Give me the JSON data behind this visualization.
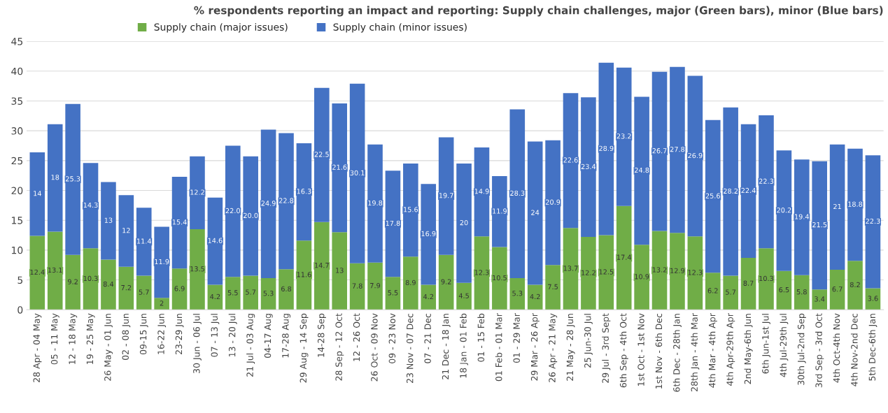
{
  "chart_data": {
    "type": "bar",
    "stacked": true,
    "title": "% respondents reporting an impact and reporting: Supply chain challenges, major (Green bars), minor (Blue bars)",
    "categories": [
      "28 Apr - 04 May",
      "05 - 11 May",
      "12 - 18 May",
      "19 - 25 May",
      "26 May - 01 Jun",
      "02 - 08 Jun",
      "09-15 Jun",
      "16-22 Jun",
      "23-29 Jun",
      "30 Jun - 06 Jul",
      "07 - 13 Jul",
      "13 - 20 Jul",
      "21 Jul - 03 Aug",
      "04-17 Aug",
      "17-28 Aug",
      "29 Aug - 14 Sep",
      "14-28 Sep",
      "28 Sep - 12 Oct",
      "12 - 26 Oct",
      "26 Oct - 09 Nov",
      "09 - 23 Nov",
      "23 Nov - 07 Dec",
      "07 - 21 Dec",
      "21 Dec - 18 Jan",
      "18 Jan - 01 Feb",
      "01 - 15 Feb",
      "01 Feb - 01 Mar",
      "01 - 29 Mar",
      "29 Mar - 26 Apr",
      "26 Apr - 21 May",
      "21 May - 28 Jun",
      "25 Jun-30 Jul",
      "29 Jul - 3rd Sept",
      "6th Sep - 4th Oct",
      "1st Oct - 1st Nov",
      "1st Nov - 6th Dec",
      "6th Dec - 28th Jan",
      "28th Jan - 4th Mar",
      "4th Mar - 4th Apr",
      "4th Apr-29th Apr",
      "2nd May-6th Jun",
      "6th Jun-1st Jul",
      "4th Jul-29th Jul",
      "30th Jul-2nd Sep",
      "3rd Sep - 3rd Oct",
      "4th Oct-4th Nov",
      "4th Nov-2nd Dec",
      "5th Dec-6th Jan"
    ],
    "series": [
      {
        "name": "Supply chain (major issues)",
        "color": "#70ad47",
        "values": [
          12.4,
          13.1,
          9.2,
          10.3,
          8.4,
          7.2,
          5.7,
          2,
          6.9,
          13.5,
          4.2,
          5.5,
          5.7,
          5.3,
          6.8,
          11.6,
          14.7,
          13,
          7.8,
          7.9,
          5.5,
          8.9,
          4.2,
          9.2,
          4.5,
          12.3,
          10.5,
          5.3,
          4.2,
          7.5,
          13.7,
          12.2,
          12.5,
          17.4,
          10.9,
          13.2,
          12.9,
          12.3,
          6.2,
          5.7,
          8.7,
          10.3,
          6.5,
          5.8,
          3.4,
          6.7,
          8.2,
          3.6
        ],
        "value_labels": [
          "12.4",
          "13.1",
          "9.2",
          "10.3",
          "8.4",
          "7.2",
          "5.7",
          "2",
          "6.9",
          "13.5",
          "4.2",
          "5.5",
          "5.7",
          "5.3",
          "6.8",
          "11.6",
          "14.7",
          "13",
          "7.8",
          "7.9",
          "5.5",
          "8.9",
          "4.2",
          "9.2",
          "4.5",
          "12.3",
          "10.5",
          "5.3",
          "4.2",
          "7.5",
          "13.7",
          "12.2",
          "12.5",
          "17.4",
          "10.9",
          "13.2",
          "12.9",
          "12.3",
          "6.2",
          "5.7",
          "8.7",
          "10.3",
          "6.5",
          "5.8",
          "3.4",
          "6.7",
          "8.2",
          "3.6"
        ]
      },
      {
        "name": "Supply chain (minor issues)",
        "color": "#4472c4",
        "values": [
          14,
          18,
          25.3,
          14.3,
          13,
          12,
          11.4,
          11.9,
          15.4,
          12.2,
          14.6,
          22.0,
          20.0,
          24.9,
          22.8,
          16.3,
          22.5,
          21.6,
          30.1,
          19.8,
          17.8,
          15.6,
          16.9,
          19.7,
          20,
          14.9,
          11.9,
          28.3,
          24,
          20.9,
          22.6,
          23.4,
          28.9,
          23.2,
          24.8,
          26.7,
          27.8,
          26.9,
          25.6,
          28.2,
          22.4,
          22.3,
          20.2,
          19.4,
          21.5,
          21,
          18.8,
          22.3
        ],
        "value_labels": [
          "14",
          "18",
          "25.3",
          "14.3",
          "13",
          "12",
          "11.4",
          "11.9",
          "15.4",
          "12.2",
          "14.6",
          "22.0",
          "20.0",
          "24.9",
          "22.8",
          "16.3",
          "22.5",
          "21.6",
          "30.1",
          "19.8",
          "17.8",
          "15.6",
          "16.9",
          "19.7",
          "20",
          "14.9",
          "11.9",
          "28.3",
          "24",
          "20.9",
          "22.6",
          "23.4",
          "28.9",
          "23.2",
          "24.8",
          "26.7",
          "27.8",
          "26.9",
          "25.6",
          "28.2",
          "22.4",
          "22.3",
          "20.2",
          "19.4",
          "21.5",
          "21",
          "18.8",
          "22.3"
        ]
      }
    ],
    "ylim": [
      0,
      45
    ],
    "yticks": [
      0,
      5,
      10,
      15,
      20,
      25,
      30,
      35,
      40,
      45
    ],
    "grid": "y",
    "legend": "top"
  }
}
